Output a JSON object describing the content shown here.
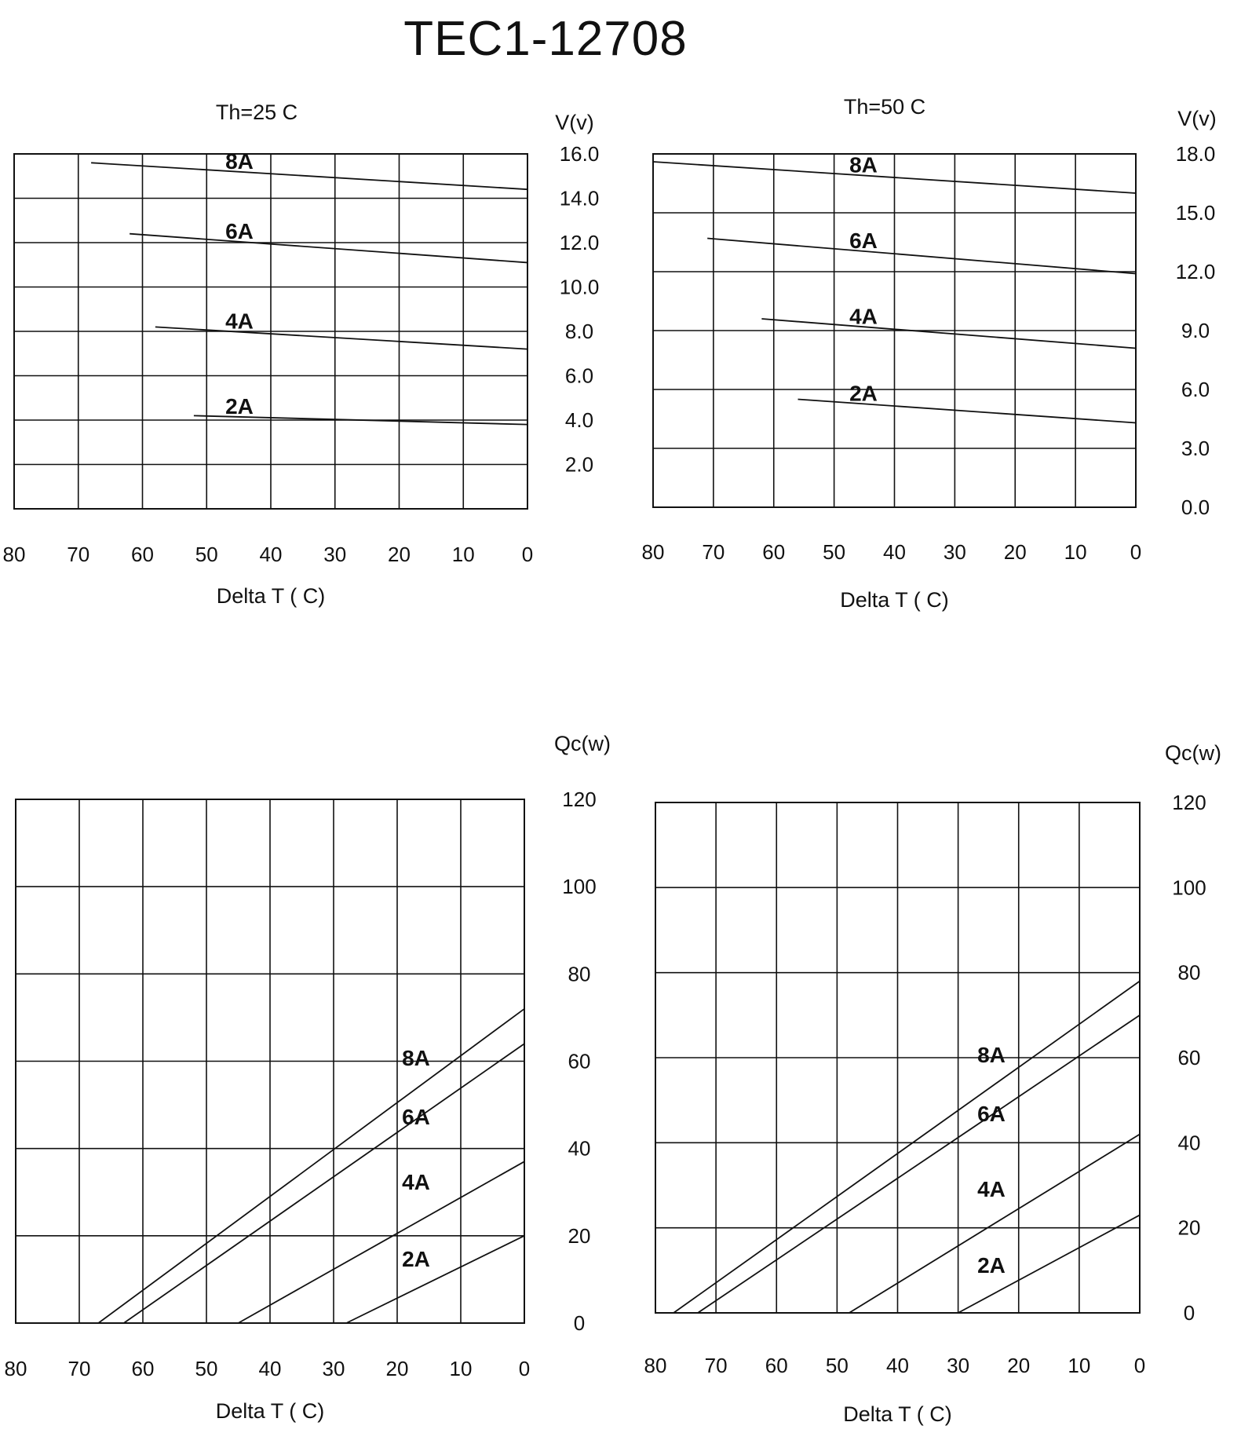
{
  "title": "TEC1-12708",
  "chart_data": [
    {
      "type": "line",
      "subtitle": "Th=25 C",
      "xlabel": "Delta  T ( C)",
      "ylabel": "V(v)",
      "xlim": [
        80,
        0
      ],
      "ylim": [
        0,
        16
      ],
      "x_ticks": [
        "80",
        "70",
        "60",
        "50",
        "40",
        "30",
        "20",
        "10",
        "0"
      ],
      "y_ticks": [
        "16.0",
        "14.0",
        "12.0",
        "10.0",
        "8.0",
        "6.0",
        "4.0",
        "2.0"
      ],
      "grid": true,
      "series": [
        {
          "name": "8A",
          "x": [
            68,
            0
          ],
          "y": [
            15.6,
            14.4
          ]
        },
        {
          "name": "6A",
          "x": [
            62,
            0
          ],
          "y": [
            12.4,
            11.1
          ]
        },
        {
          "name": "4A",
          "x": [
            58,
            0
          ],
          "y": [
            8.2,
            7.2
          ]
        },
        {
          "name": "2A",
          "x": [
            52,
            0
          ],
          "y": [
            4.2,
            3.8
          ]
        }
      ]
    },
    {
      "type": "line",
      "subtitle": "Th=50 C",
      "xlabel": "Delta  T ( C)",
      "ylabel": "V(v)",
      "xlim": [
        80,
        0
      ],
      "ylim": [
        0,
        18
      ],
      "x_ticks": [
        "80",
        "70",
        "60",
        "50",
        "40",
        "30",
        "20",
        "10",
        "0"
      ],
      "y_ticks": [
        "18.0",
        "15.0",
        "12.0",
        "9.0",
        "6.0",
        "3.0",
        "0.0"
      ],
      "grid": true,
      "series": [
        {
          "name": "8A",
          "x": [
            80,
            0
          ],
          "y": [
            17.6,
            16.0
          ]
        },
        {
          "name": "6A",
          "x": [
            71,
            0
          ],
          "y": [
            13.7,
            11.9
          ]
        },
        {
          "name": "4A",
          "x": [
            62,
            0
          ],
          "y": [
            9.6,
            8.1
          ]
        },
        {
          "name": "2A",
          "x": [
            56,
            0
          ],
          "y": [
            5.5,
            4.3
          ]
        }
      ]
    },
    {
      "type": "line",
      "subtitle": "",
      "xlabel": "Delta  T ( C)",
      "ylabel": "Qc(w)",
      "xlim": [
        80,
        0
      ],
      "ylim": [
        0,
        120
      ],
      "x_ticks": [
        "80",
        "70",
        "60",
        "50",
        "40",
        "30",
        "20",
        "10",
        "0"
      ],
      "y_ticks": [
        "120",
        "100",
        "80",
        "60",
        "40",
        "20",
        "0"
      ],
      "grid": true,
      "series": [
        {
          "name": "8A",
          "x": [
            67,
            0
          ],
          "y": [
            0,
            72
          ]
        },
        {
          "name": "6A",
          "x": [
            63,
            0
          ],
          "y": [
            0,
            64
          ]
        },
        {
          "name": "4A",
          "x": [
            45,
            0
          ],
          "y": [
            0,
            37
          ]
        },
        {
          "name": "2A",
          "x": [
            28,
            0
          ],
          "y": [
            0,
            20
          ]
        }
      ]
    },
    {
      "type": "line",
      "subtitle": "",
      "xlabel": "Delta  T ( C)",
      "ylabel": "Qc(w)",
      "xlim": [
        80,
        0
      ],
      "ylim": [
        0,
        120
      ],
      "x_ticks": [
        "80",
        "70",
        "60",
        "50",
        "40",
        "30",
        "20",
        "10",
        "0"
      ],
      "y_ticks": [
        "120",
        "100",
        "80",
        "60",
        "40",
        "20",
        "0"
      ],
      "grid": true,
      "series": [
        {
          "name": "8A",
          "x": [
            77,
            0
          ],
          "y": [
            0,
            78
          ]
        },
        {
          "name": "6A",
          "x": [
            73,
            0
          ],
          "y": [
            0,
            70
          ]
        },
        {
          "name": "4A",
          "x": [
            48,
            0
          ],
          "y": [
            0,
            42
          ]
        },
        {
          "name": "2A",
          "x": [
            30,
            0
          ],
          "y": [
            0,
            23
          ]
        }
      ]
    }
  ]
}
